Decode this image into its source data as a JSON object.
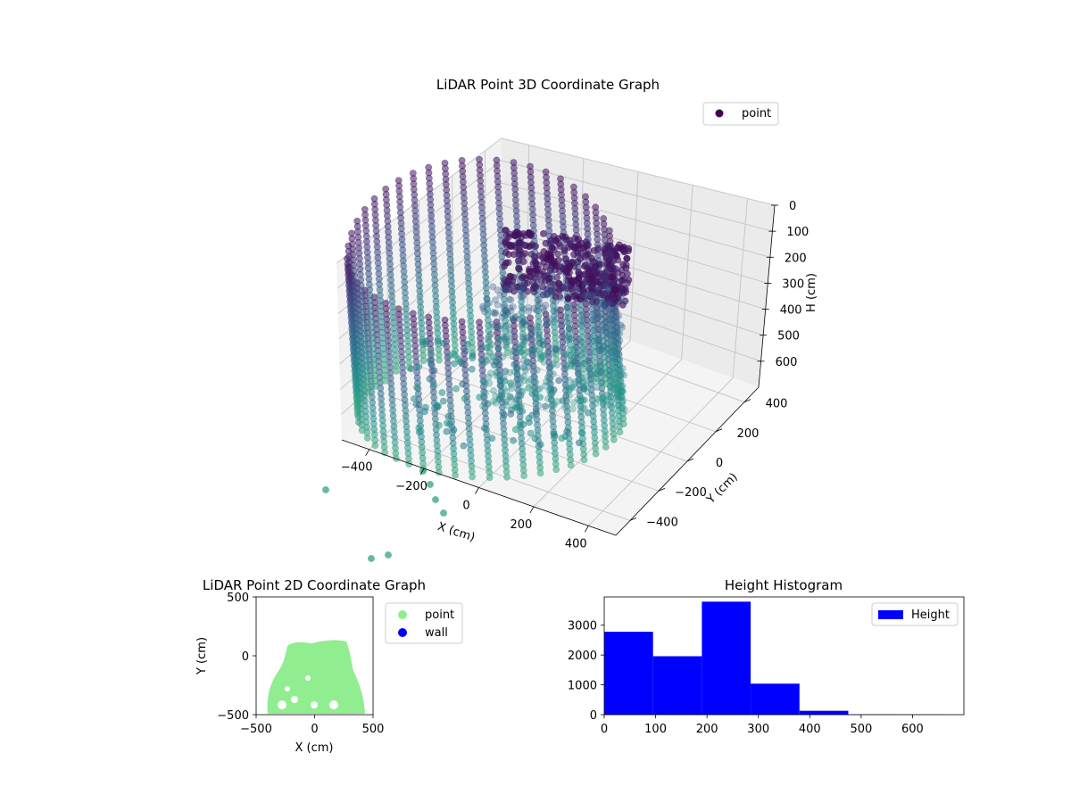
{
  "chart_data": [
    {
      "type": "scatter3d",
      "title": "LiDAR Point 3D Coordinate Graph",
      "xlabel": "X (cm)",
      "ylabel": "Y (cm)",
      "zlabel": "H (cm)",
      "xticks": [
        "−400",
        "−200",
        "0",
        "200",
        "400"
      ],
      "yticks": [
        "400",
        "200",
        "0",
        "−200",
        "−400"
      ],
      "zticks": [
        "0",
        "100",
        "200",
        "300",
        "400",
        "500",
        "600"
      ],
      "xlim": [
        -500,
        500
      ],
      "ylim": [
        -500,
        500
      ],
      "zlim": [
        0,
        700
      ],
      "zaxis_inverted": true,
      "colormap": "viridis",
      "grid": true,
      "legend": {
        "position": "top-right",
        "entries": [
          "point"
        ]
      },
      "series": [
        {
          "name": "point",
          "color": "#440154"
        }
      ]
    },
    {
      "type": "scatter",
      "title": "LiDAR Point 2D Coordinate Graph",
      "xlabel": "X (cm)",
      "ylabel": "Y (cm)",
      "xticks": [
        "−500",
        "0",
        "500"
      ],
      "yticks": [
        "500",
        "0",
        "−500"
      ],
      "xlim": [
        -500,
        500
      ],
      "ylim": [
        -500,
        500
      ],
      "legend": {
        "position": "outside-right",
        "entries": [
          "point",
          "wall"
        ]
      },
      "series": [
        {
          "name": "point",
          "color": "#90ee90"
        },
        {
          "name": "wall",
          "color": "#0000ff"
        }
      ]
    },
    {
      "type": "bar",
      "title": "Height Histogram",
      "xticks": [
        "0",
        "100",
        "200",
        "300",
        "400",
        "500",
        "600"
      ],
      "yticks": [
        "0",
        "1000",
        "2000",
        "3000"
      ],
      "xlim": [
        0,
        700
      ],
      "ylim": [
        0,
        3950
      ],
      "bin_edges": [
        0,
        95,
        190,
        285,
        380,
        475,
        570,
        665
      ],
      "series": [
        {
          "name": "Height",
          "color": "#0000ff",
          "values": [
            2780,
            1960,
            3790,
            1040,
            130,
            10,
            5
          ]
        }
      ],
      "legend": {
        "position": "top-right",
        "entries": [
          "Height"
        ]
      }
    }
  ]
}
